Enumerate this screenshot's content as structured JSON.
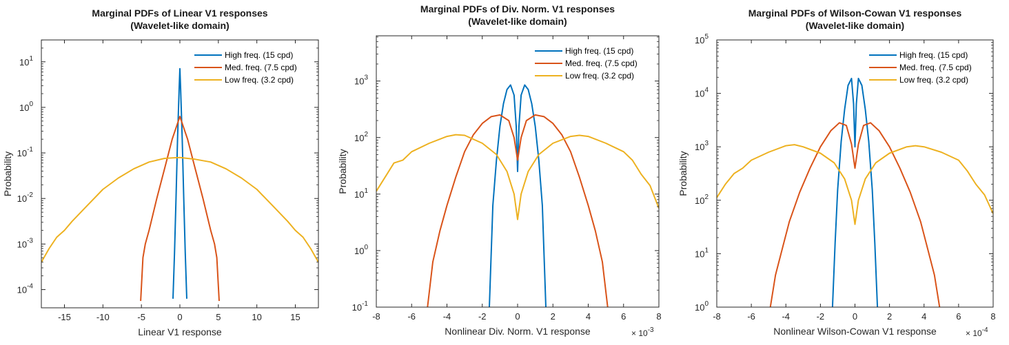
{
  "chart_data": [
    {
      "type": "line",
      "title": "Marginal PDFs of Linear V1 responses",
      "subtitle": "(Wavelet-like domain)",
      "xlabel": "Linear V1 response",
      "ylabel": "Probability",
      "xlim": [
        -18,
        18
      ],
      "ylim_log10": [
        -4.4,
        1.48
      ],
      "yscale": "log",
      "x_multiplier": "",
      "xticks": [
        -15,
        -10,
        -5,
        0,
        5,
        10,
        15
      ],
      "xtick_labels": [
        "-15",
        "-10",
        "-5",
        "0",
        "5",
        "10",
        "15"
      ],
      "yticks": [
        {
          "base": "10",
          "exp": "1",
          "log10": 1
        },
        {
          "base": "10",
          "exp": "0",
          "log10": 0
        },
        {
          "base": "10",
          "exp": "-1",
          "log10": -1
        },
        {
          "base": "10",
          "exp": "-2",
          "log10": -2
        },
        {
          "base": "10",
          "exp": "-3",
          "log10": -3
        },
        {
          "base": "10",
          "exp": "-4",
          "log10": -4
        }
      ],
      "legend_position": "top-right",
      "series": [
        {
          "name": "High freq. (15 cpd)",
          "color": "#0072BD",
          "x": [
            -0.9,
            -0.7,
            -0.5,
            -0.3,
            -0.1,
            0,
            0.1,
            0.3,
            0.5,
            0.7,
            0.9
          ],
          "y_log10": [
            -4.2,
            -3.2,
            -2.0,
            -0.7,
            0.4,
            0.85,
            0.4,
            -0.7,
            -2.0,
            -3.2,
            -4.2
          ]
        },
        {
          "name": "Med. freq. (7.5 cpd)",
          "color": "#D95319",
          "x": [
            -5.1,
            -4.8,
            -4.5,
            -4,
            -3,
            -2,
            -1,
            -0.5,
            0,
            0.5,
            1,
            2,
            3,
            4,
            4.5,
            4.8,
            5.1
          ],
          "y_log10": [
            -4.25,
            -3.3,
            -3.0,
            -2.7,
            -2.0,
            -1.35,
            -0.7,
            -0.45,
            -0.2,
            -0.45,
            -0.7,
            -1.35,
            -2.0,
            -2.7,
            -3.0,
            -3.3,
            -4.25
          ]
        },
        {
          "name": "Low freq. (3.2 cpd)",
          "color": "#EDB120",
          "x": [
            -18,
            -17,
            -16,
            -15,
            -14,
            -12,
            -10,
            -8,
            -6,
            -4,
            -2,
            0,
            2,
            4,
            6,
            8,
            10,
            12,
            14,
            15,
            16,
            17,
            18
          ],
          "y_log10": [
            -3.4,
            -3.1,
            -2.85,
            -2.7,
            -2.5,
            -2.15,
            -1.8,
            -1.55,
            -1.35,
            -1.2,
            -1.12,
            -1.1,
            -1.14,
            -1.2,
            -1.35,
            -1.55,
            -1.8,
            -2.15,
            -2.5,
            -2.7,
            -2.85,
            -3.1,
            -3.4
          ]
        }
      ]
    },
    {
      "type": "line",
      "title": "Marginal PDFs of Div. Norm.  V1 responses",
      "subtitle": "(Wavelet-like domain)",
      "xlabel": "Nonlinear Div. Norm. V1 response",
      "ylabel": "Probability",
      "xlim": [
        -8,
        8
      ],
      "ylim_log10": [
        -1,
        3.8
      ],
      "yscale": "log",
      "x_multiplier": "× 10",
      "x_multiplier_exp": "-3",
      "xticks": [
        -8,
        -6,
        -4,
        -2,
        0,
        2,
        4,
        6,
        8
      ],
      "xtick_labels": [
        "-8",
        "-6",
        "-4",
        "-2",
        "0",
        "2",
        "4",
        "6",
        "8"
      ],
      "yticks": [
        {
          "base": "10",
          "exp": "3",
          "log10": 3
        },
        {
          "base": "10",
          "exp": "2",
          "log10": 2
        },
        {
          "base": "10",
          "exp": "1",
          "log10": 1
        },
        {
          "base": "10",
          "exp": "0",
          "log10": 0
        },
        {
          "base": "10",
          "exp": "-1",
          "log10": -1
        }
      ],
      "legend_position": "top-right",
      "series": [
        {
          "name": "High freq. (15 cpd)",
          "color": "#0072BD",
          "x": [
            -1.6,
            -1.4,
            -1.2,
            -1.0,
            -0.8,
            -0.6,
            -0.4,
            -0.2,
            -0.08,
            0,
            0.08,
            0.2,
            0.4,
            0.6,
            0.8,
            1.0,
            1.2,
            1.4,
            1.6
          ],
          "y_log10": [
            -1.0,
            0.8,
            1.6,
            2.2,
            2.6,
            2.85,
            2.93,
            2.75,
            2.2,
            1.4,
            2.2,
            2.75,
            2.93,
            2.85,
            2.6,
            2.2,
            1.6,
            0.8,
            -1.0
          ]
        },
        {
          "name": "Med. freq. (7.5 cpd)",
          "color": "#D95319",
          "x": [
            -5.1,
            -4.8,
            -4.4,
            -4,
            -3.5,
            -3,
            -2.5,
            -2,
            -1.5,
            -1,
            -0.5,
            -0.2,
            0,
            0.2,
            0.5,
            1,
            1.5,
            2,
            2.5,
            3,
            3.5,
            4,
            4.4,
            4.8,
            5.1
          ],
          "y_log10": [
            -1.0,
            -0.2,
            0.35,
            0.8,
            1.3,
            1.75,
            2.05,
            2.25,
            2.37,
            2.4,
            2.3,
            2.0,
            1.6,
            2.0,
            2.3,
            2.4,
            2.37,
            2.25,
            2.05,
            1.75,
            1.3,
            0.8,
            0.35,
            -0.2,
            -1.0
          ]
        },
        {
          "name": "Low freq. (3.2 cpd)",
          "color": "#EDB120",
          "x": [
            -8,
            -7.5,
            -7,
            -6.5,
            -6,
            -5,
            -4,
            -3.5,
            -3,
            -2,
            -1.2,
            -0.6,
            -0.2,
            0,
            0.2,
            0.6,
            1.2,
            2,
            3,
            3.5,
            4,
            5,
            6,
            6.5,
            7,
            7.5,
            8
          ],
          "y_log10": [
            1.05,
            1.3,
            1.55,
            1.6,
            1.75,
            1.9,
            2.02,
            2.05,
            2.04,
            1.9,
            1.7,
            1.4,
            1.0,
            0.55,
            1.0,
            1.4,
            1.7,
            1.9,
            2.02,
            2.04,
            2.02,
            1.9,
            1.75,
            1.6,
            1.35,
            1.15,
            0.75
          ]
        }
      ]
    },
    {
      "type": "line",
      "title": "Marginal PDFs of Wilson-Cowan V1 responses",
      "subtitle": "(Wavelet-like domain)",
      "xlabel": "Nonlinear Wilson-Cowan V1 response",
      "ylabel": "Probability",
      "xlim": [
        -8,
        8
      ],
      "ylim_log10": [
        0,
        5
      ],
      "yscale": "log",
      "x_multiplier": "× 10",
      "x_multiplier_exp": "-4",
      "xticks": [
        -8,
        -6,
        -4,
        -2,
        0,
        2,
        4,
        6,
        8
      ],
      "xtick_labels": [
        "-8",
        "-6",
        "-4",
        "-2",
        "0",
        "2",
        "4",
        "6",
        "8"
      ],
      "yticks": [
        {
          "base": "10",
          "exp": "5",
          "log10": 5
        },
        {
          "base": "10",
          "exp": "4",
          "log10": 4
        },
        {
          "base": "10",
          "exp": "3",
          "log10": 3
        },
        {
          "base": "10",
          "exp": "2",
          "log10": 2
        },
        {
          "base": "10",
          "exp": "1",
          "log10": 1
        },
        {
          "base": "10",
          "exp": "0",
          "log10": 0
        }
      ],
      "legend_position": "top-right",
      "series": [
        {
          "name": "High freq. (15 cpd)",
          "color": "#0072BD",
          "x": [
            -1.3,
            -1.15,
            -1.0,
            -0.8,
            -0.6,
            -0.4,
            -0.2,
            -0.08,
            0,
            0.08,
            0.2,
            0.4,
            0.6,
            0.8,
            1.0,
            1.15,
            1.3
          ],
          "y_log10": [
            0.0,
            1.2,
            2.2,
            3.1,
            3.7,
            4.15,
            4.28,
            3.8,
            3.0,
            3.8,
            4.28,
            4.15,
            3.7,
            3.1,
            2.2,
            1.2,
            0.0
          ]
        },
        {
          "name": "Med. freq. (7.5 cpd)",
          "color": "#D95319",
          "x": [
            -4.9,
            -4.6,
            -4.2,
            -3.8,
            -3.2,
            -2.6,
            -2,
            -1.4,
            -0.9,
            -0.5,
            -0.2,
            0,
            0.2,
            0.5,
            0.9,
            1.4,
            2,
            2.6,
            3.2,
            3.8,
            4.2,
            4.6,
            4.9
          ],
          "y_log10": [
            0.0,
            0.6,
            1.1,
            1.6,
            2.15,
            2.6,
            3.0,
            3.3,
            3.45,
            3.4,
            3.05,
            2.6,
            3.05,
            3.4,
            3.45,
            3.3,
            3.0,
            2.6,
            2.15,
            1.6,
            1.1,
            0.6,
            0.0
          ]
        },
        {
          "name": "Low freq. (3.2 cpd)",
          "color": "#EDB120",
          "x": [
            -8,
            -7.5,
            -7,
            -6.5,
            -6,
            -5,
            -4,
            -3.5,
            -3,
            -2,
            -1.2,
            -0.6,
            -0.2,
            0,
            0.2,
            0.6,
            1.2,
            2,
            3,
            3.5,
            4,
            5,
            6,
            6.5,
            7,
            7.5,
            8
          ],
          "y_log10": [
            2.05,
            2.3,
            2.5,
            2.6,
            2.75,
            2.9,
            3.02,
            3.04,
            3.0,
            2.88,
            2.7,
            2.4,
            2.0,
            1.55,
            2.0,
            2.4,
            2.7,
            2.88,
            3.0,
            3.02,
            3.0,
            2.9,
            2.75,
            2.55,
            2.3,
            2.1,
            1.75
          ]
        }
      ]
    }
  ]
}
